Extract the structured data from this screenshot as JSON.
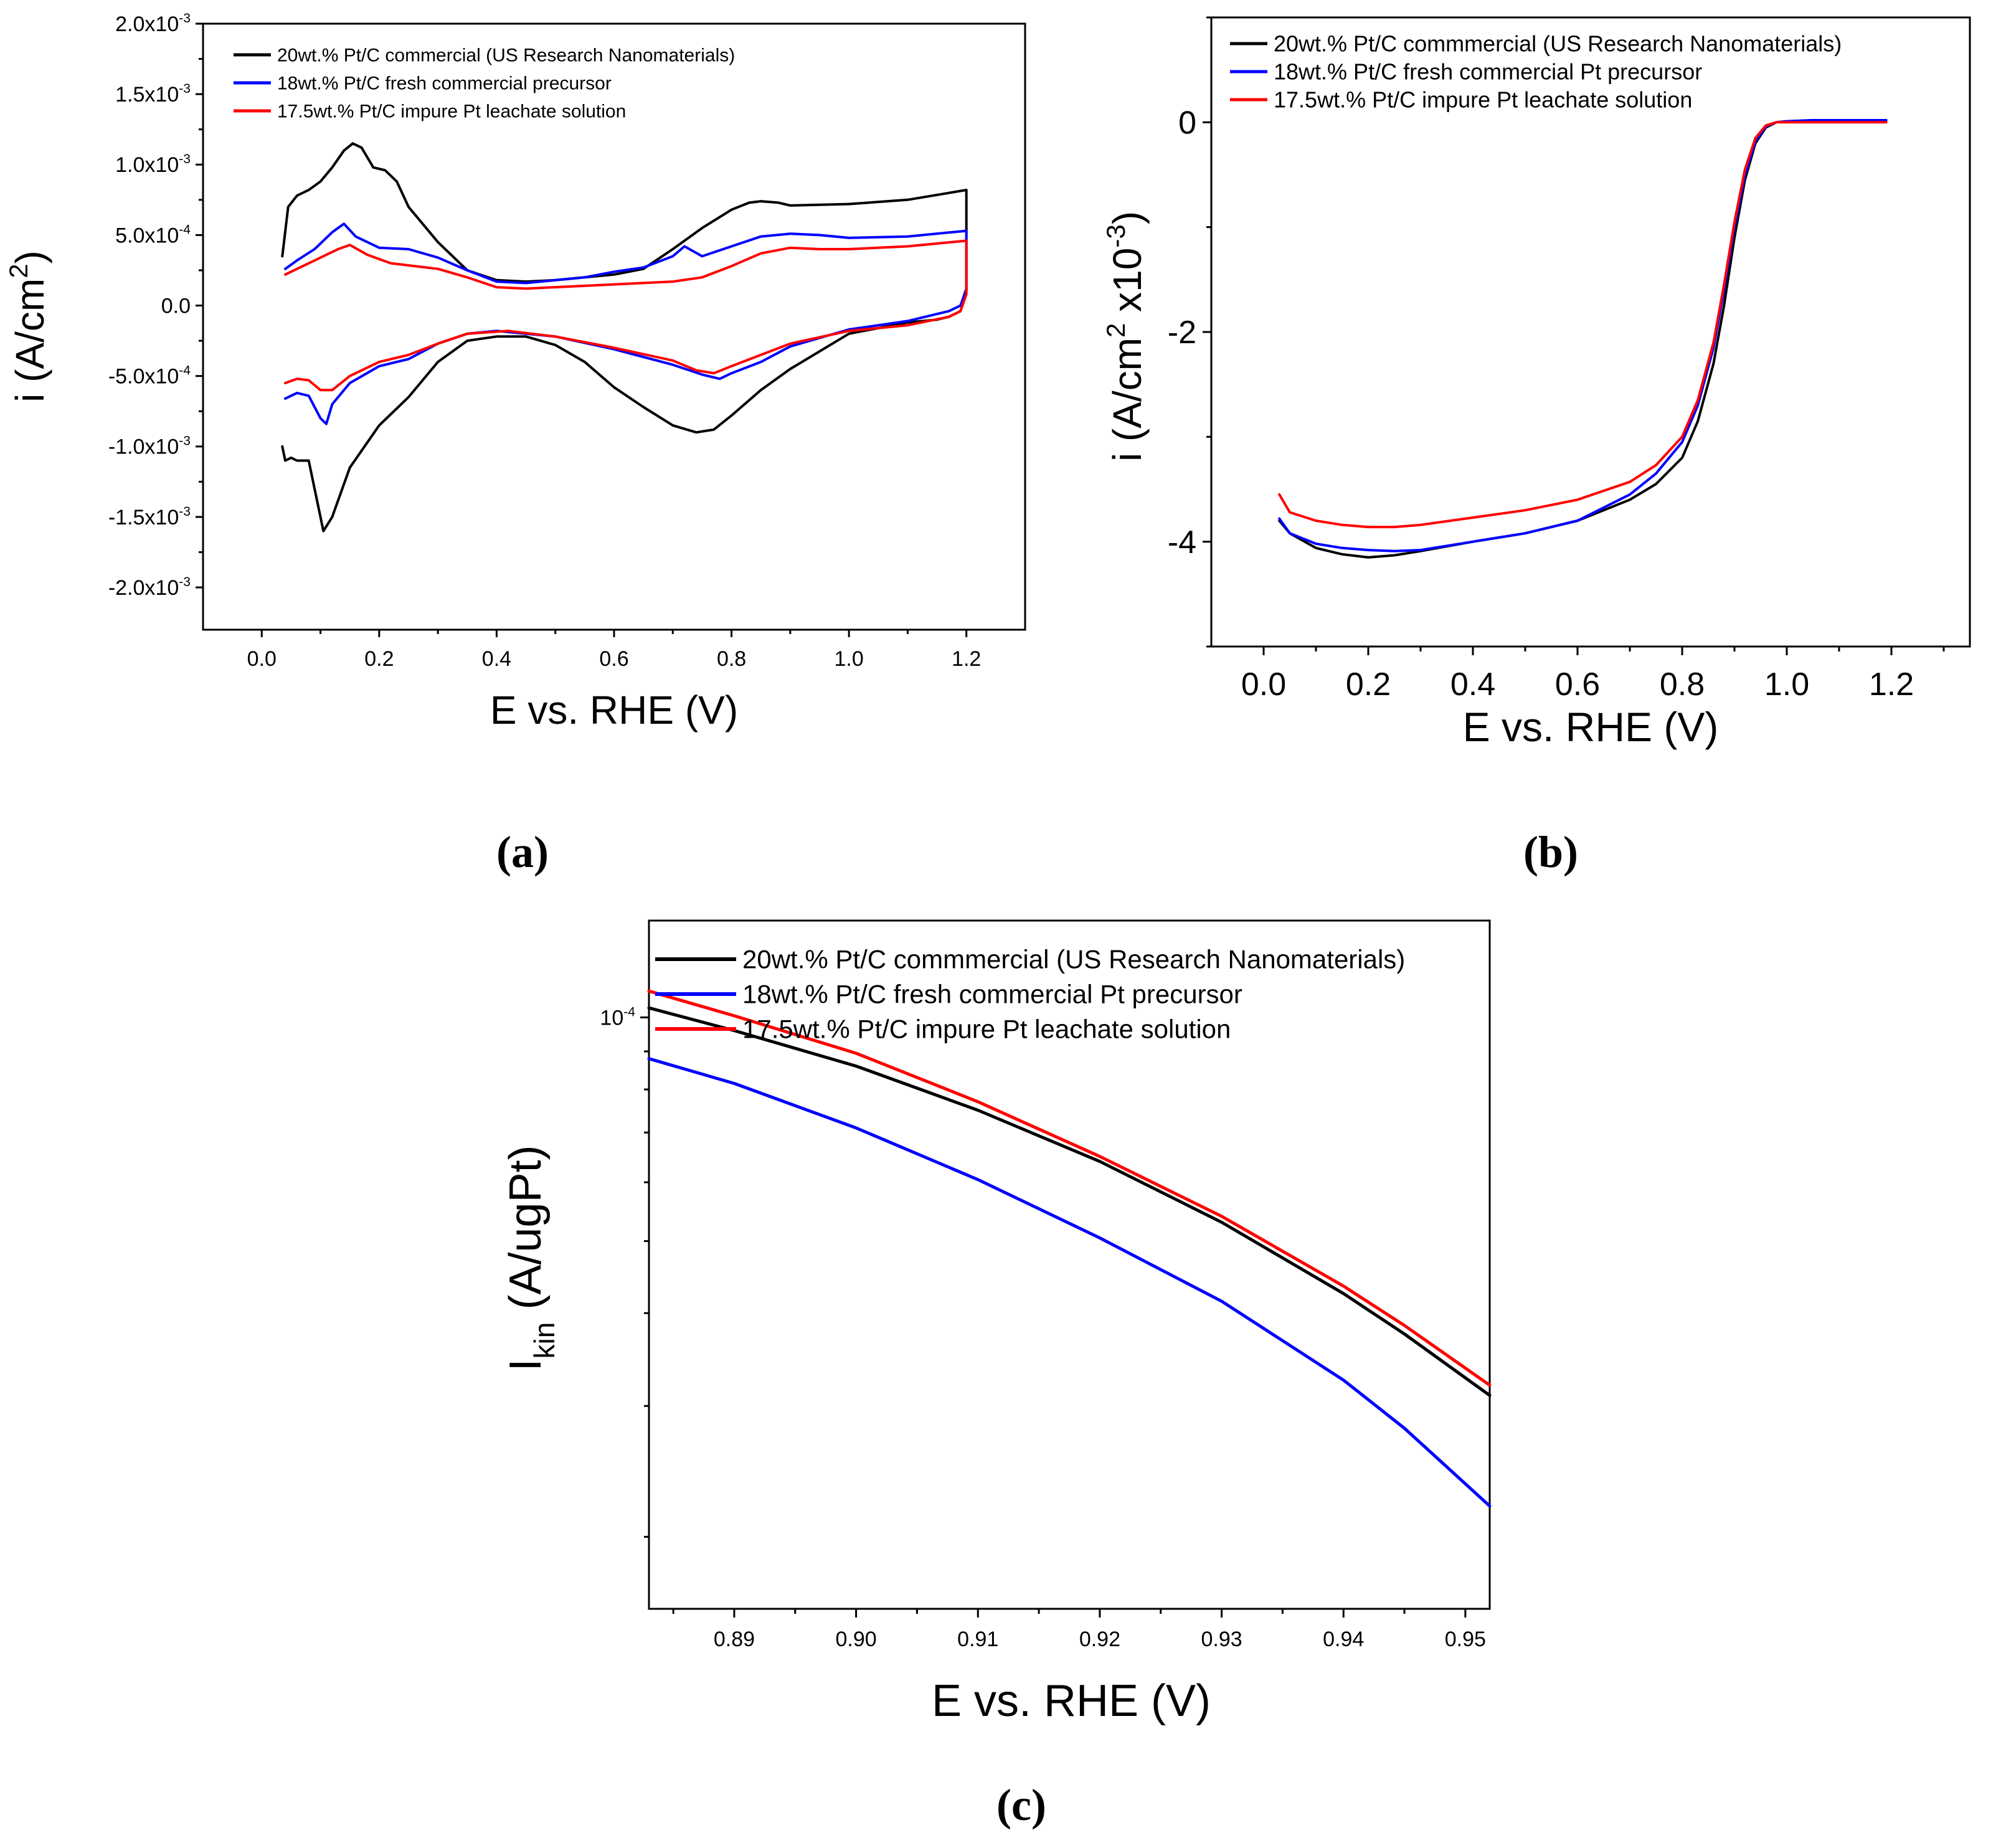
{
  "chart_data": [
    {
      "panel": "(a)",
      "type": "line",
      "title": "",
      "xlabel": "E vs. RHE (V)",
      "ylabel": "i (A/cm",
      "ylabel_sup": "2",
      "ylabel_close": ")",
      "xlim": [
        -0.1,
        1.3
      ],
      "ylim": [
        -0.0023,
        0.002
      ],
      "x_ticks": [
        0.0,
        0.2,
        0.4,
        0.6,
        0.8,
        1.0,
        1.2
      ],
      "x_tick_labels": [
        "0.0",
        "0.2",
        "0.4",
        "0.6",
        "0.8",
        "1.0",
        "1.2"
      ],
      "y_ticks": [
        {
          "value": 0.002,
          "mant": "2.0x10",
          "exp": "-3"
        },
        {
          "value": 0.0015,
          "mant": "1.5x10",
          "exp": "-3"
        },
        {
          "value": 0.001,
          "mant": "1.0x10",
          "exp": "-3"
        },
        {
          "value": 0.0005,
          "mant": "5.0x10",
          "exp": "-4"
        },
        {
          "value": 0.0,
          "mant": "0.0",
          "exp": ""
        },
        {
          "value": -0.0005,
          "mant": "-5.0x10",
          "exp": "-4"
        },
        {
          "value": -0.001,
          "mant": "-1.0x10",
          "exp": "-3"
        },
        {
          "value": -0.0015,
          "mant": "-1.5x10",
          "exp": "-3"
        },
        {
          "value": -0.002,
          "mant": "-2.0x10",
          "exp": "-3"
        }
      ],
      "legend_position": "top-left",
      "series": [
        {
          "name": "20wt.% Pt/C commercial (US Research Nanomaterials)",
          "color": "#000000",
          "x": [
            0.035,
            0.045,
            0.06,
            0.08,
            0.1,
            0.12,
            0.14,
            0.155,
            0.17,
            0.19,
            0.21,
            0.23,
            0.25,
            0.3,
            0.35,
            0.4,
            0.45,
            0.5,
            0.55,
            0.6,
            0.65,
            0.7,
            0.75,
            0.8,
            0.83,
            0.85,
            0.88,
            0.9,
            1.0,
            1.1,
            1.2,
            1.2,
            1.19,
            1.17,
            1.15,
            1.1,
            1.0,
            0.9,
            0.85,
            0.8,
            0.77,
            0.74,
            0.7,
            0.65,
            0.6,
            0.55,
            0.5,
            0.45,
            0.4,
            0.35,
            0.3,
            0.25,
            0.2,
            0.15,
            0.12,
            0.105,
            0.09,
            0.08,
            0.06,
            0.05,
            0.04,
            0.035
          ],
          "y": [
            0.00035,
            0.0007,
            0.00078,
            0.00082,
            0.00088,
            0.00098,
            0.0011,
            0.00115,
            0.00112,
            0.00098,
            0.00096,
            0.00088,
            0.0007,
            0.00045,
            0.00025,
            0.00018,
            0.00017,
            0.00018,
            0.0002,
            0.00022,
            0.00026,
            0.0004,
            0.00055,
            0.00068,
            0.00073,
            0.00074,
            0.00073,
            0.00071,
            0.00072,
            0.00075,
            0.00082,
            0.0001,
            -4e-05,
            -8e-05,
            -0.0001,
            -0.00012,
            -0.0002,
            -0.00045,
            -0.0006,
            -0.00078,
            -0.00088,
            -0.0009,
            -0.00085,
            -0.00072,
            -0.00058,
            -0.0004,
            -0.00028,
            -0.00022,
            -0.00022,
            -0.00025,
            -0.0004,
            -0.00065,
            -0.00085,
            -0.00115,
            -0.0015,
            -0.0016,
            -0.0013,
            -0.0011,
            -0.0011,
            -0.00108,
            -0.0011,
            -0.001
          ]
        },
        {
          "name": "18wt.% Pt/C fresh commercial precursor",
          "color": "#0000ff",
          "x": [
            0.04,
            0.06,
            0.09,
            0.12,
            0.14,
            0.16,
            0.2,
            0.25,
            0.3,
            0.35,
            0.4,
            0.45,
            0.5,
            0.55,
            0.6,
            0.65,
            0.7,
            0.72,
            0.75,
            0.8,
            0.85,
            0.9,
            0.95,
            1.0,
            1.1,
            1.2,
            1.2,
            1.19,
            1.17,
            1.1,
            1.0,
            0.9,
            0.85,
            0.8,
            0.78,
            0.75,
            0.7,
            0.6,
            0.5,
            0.4,
            0.35,
            0.3,
            0.25,
            0.2,
            0.15,
            0.12,
            0.11,
            0.1,
            0.08,
            0.06,
            0.04
          ],
          "y": [
            0.00026,
            0.00032,
            0.0004,
            0.00052,
            0.00058,
            0.00049,
            0.00041,
            0.0004,
            0.00034,
            0.00025,
            0.00017,
            0.00016,
            0.00018,
            0.0002,
            0.00024,
            0.00027,
            0.00035,
            0.00042,
            0.00035,
            0.00042,
            0.00049,
            0.00051,
            0.0005,
            0.00048,
            0.00049,
            0.00053,
            0.00012,
            0.0,
            -4e-05,
            -0.00011,
            -0.00017,
            -0.00029,
            -0.0004,
            -0.00048,
            -0.00052,
            -0.00049,
            -0.00042,
            -0.00031,
            -0.00022,
            -0.00018,
            -0.0002,
            -0.00027,
            -0.00038,
            -0.00043,
            -0.00055,
            -0.0007,
            -0.00084,
            -0.0008,
            -0.00064,
            -0.00062,
            -0.00066
          ]
        },
        {
          "name": "17.5wt.% Pt/C impure Pt leachate solution",
          "color": "#ff0000",
          "x": [
            0.04,
            0.07,
            0.1,
            0.13,
            0.15,
            0.18,
            0.22,
            0.3,
            0.35,
            0.4,
            0.45,
            0.5,
            0.6,
            0.7,
            0.75,
            0.8,
            0.85,
            0.9,
            0.95,
            1.0,
            1.1,
            1.2,
            1.2,
            1.19,
            1.17,
            1.1,
            1.0,
            0.9,
            0.85,
            0.8,
            0.77,
            0.74,
            0.7,
            0.6,
            0.5,
            0.42,
            0.35,
            0.3,
            0.25,
            0.2,
            0.15,
            0.12,
            0.1,
            0.08,
            0.06,
            0.04
          ],
          "y": [
            0.00022,
            0.00028,
            0.00034,
            0.0004,
            0.00043,
            0.00036,
            0.0003,
            0.00026,
            0.0002,
            0.00013,
            0.00012,
            0.00013,
            0.00015,
            0.00017,
            0.0002,
            0.00028,
            0.00037,
            0.00041,
            0.0004,
            0.0004,
            0.00042,
            0.00046,
            8e-05,
            -4e-05,
            -8e-05,
            -0.00014,
            -0.00018,
            -0.00027,
            -0.00035,
            -0.00043,
            -0.00048,
            -0.00046,
            -0.00039,
            -0.0003,
            -0.00022,
            -0.00018,
            -0.0002,
            -0.00027,
            -0.00035,
            -0.0004,
            -0.0005,
            -0.0006,
            -0.0006,
            -0.00053,
            -0.00052,
            -0.00055
          ]
        }
      ]
    },
    {
      "panel": "(b)",
      "type": "line",
      "title": "",
      "xlabel": "E vs. RHE (V)",
      "ylabel": "i (A/cm",
      "ylabel_sup": "2",
      "ylabel_mid": " x10",
      "ylabel_sup2": "-3",
      "ylabel_close": ")",
      "xlim": [
        -0.1,
        1.35
      ],
      "ylim": [
        -5,
        1.0
      ],
      "x_ticks": [
        0.0,
        0.2,
        0.4,
        0.6,
        0.8,
        1.0,
        1.2
      ],
      "x_tick_labels": [
        "0.0",
        "0.2",
        "0.4",
        "0.6",
        "0.8",
        "1.0",
        "1.2"
      ],
      "y_ticks": [
        0,
        -2,
        -4
      ],
      "y_tick_labels": [
        "0",
        "-2",
        "-4"
      ],
      "legend_position": "top-left",
      "series": [
        {
          "name": "20wt.% Pt/C commmercial (US Research Nanomaterials)",
          "color": "#000000",
          "x": [
            0.03,
            0.05,
            0.1,
            0.15,
            0.2,
            0.25,
            0.3,
            0.4,
            0.5,
            0.6,
            0.7,
            0.75,
            0.8,
            0.83,
            0.86,
            0.88,
            0.9,
            0.92,
            0.94,
            0.96,
            0.98,
            1.0,
            1.05,
            1.1,
            1.19
          ],
          "y": [
            -3.8,
            -3.92,
            -4.06,
            -4.12,
            -4.15,
            -4.13,
            -4.09,
            -4.0,
            -3.92,
            -3.8,
            -3.6,
            -3.45,
            -3.2,
            -2.85,
            -2.3,
            -1.75,
            -1.1,
            -0.55,
            -0.2,
            -0.05,
            0.0,
            0.01,
            0.02,
            0.02,
            0.02
          ]
        },
        {
          "name": "18wt.% Pt/C fresh commercial Pt precursor",
          "color": "#0000ff",
          "x": [
            0.03,
            0.05,
            0.1,
            0.15,
            0.2,
            0.25,
            0.3,
            0.4,
            0.5,
            0.6,
            0.7,
            0.75,
            0.8,
            0.83,
            0.86,
            0.88,
            0.9,
            0.92,
            0.94,
            0.96,
            0.98,
            1.0,
            1.05,
            1.1,
            1.19
          ],
          "y": [
            -3.78,
            -3.92,
            -4.02,
            -4.06,
            -4.08,
            -4.09,
            -4.08,
            -4.0,
            -3.92,
            -3.8,
            -3.55,
            -3.35,
            -3.05,
            -2.7,
            -2.15,
            -1.6,
            -1.0,
            -0.5,
            -0.18,
            -0.04,
            0.0,
            0.01,
            0.02,
            0.02,
            0.02
          ]
        },
        {
          "name": "17.5wt.% Pt/C impure Pt leachate solution",
          "color": "#ff0000",
          "x": [
            0.03,
            0.05,
            0.1,
            0.15,
            0.2,
            0.25,
            0.3,
            0.4,
            0.5,
            0.6,
            0.7,
            0.75,
            0.8,
            0.83,
            0.86,
            0.88,
            0.9,
            0.92,
            0.94,
            0.96,
            0.98,
            1.0,
            1.05,
            1.1,
            1.19
          ],
          "y": [
            -3.55,
            -3.72,
            -3.8,
            -3.84,
            -3.86,
            -3.86,
            -3.84,
            -3.77,
            -3.7,
            -3.6,
            -3.43,
            -3.27,
            -3.0,
            -2.65,
            -2.1,
            -1.55,
            -0.95,
            -0.45,
            -0.15,
            -0.03,
            0.0,
            0.0,
            0.0,
            0.0,
            0.0
          ]
        }
      ]
    },
    {
      "panel": "(c)",
      "type": "line",
      "scale_y": "log",
      "title": "",
      "xlabel": "E vs. RHE (V)",
      "ylabel": "I",
      "ylabel_sub": "kin",
      "ylabel_rest": " (A/ugPt)",
      "xlim": [
        0.883,
        0.952
      ],
      "ylim": [
        1.6e-05,
        0.000135
      ],
      "x_ticks": [
        0.89,
        0.9,
        0.91,
        0.92,
        0.93,
        0.94,
        0.95
      ],
      "x_tick_labels": [
        "0.89",
        "0.90",
        "0.91",
        "0.92",
        "0.93",
        "0.94",
        "0.95"
      ],
      "y_major_ticks": [
        {
          "value": 0.0001,
          "mant": "10",
          "exp": "-4"
        }
      ],
      "y_minor_ticks": [
        2e-05,
        3e-05,
        4e-05,
        5e-05,
        6e-05,
        7e-05,
        8e-05,
        9e-05
      ],
      "legend_position": "top-left",
      "series": [
        {
          "name": " 20wt.% Pt/C commmercial (US Research Nanomaterials)",
          "color": "#000000",
          "x": [
            0.883,
            0.89,
            0.9,
            0.91,
            0.92,
            0.93,
            0.94,
            0.945,
            0.952
          ],
          "y": [
            0.000103,
            9.6e-05,
            8.6e-05,
            7.5e-05,
            6.4e-05,
            5.3e-05,
            4.25e-05,
            3.75e-05,
            3.1e-05
          ]
        },
        {
          "name": "18wt.% Pt/C fresh commercial Pt precursor",
          "color": "#0000ff",
          "x": [
            0.883,
            0.89,
            0.9,
            0.91,
            0.92,
            0.93,
            0.94,
            0.945,
            0.952
          ],
          "y": [
            8.8e-05,
            8.15e-05,
            7.1e-05,
            6.05e-05,
            5.05e-05,
            4.15e-05,
            3.25e-05,
            2.8e-05,
            2.2e-05
          ]
        },
        {
          "name": "17.5wt.% Pt/C impure Pt leachate solution",
          "color": "#ff0000",
          "x": [
            0.883,
            0.89,
            0.9,
            0.91,
            0.92,
            0.93,
            0.94,
            0.945,
            0.952
          ],
          "y": [
            0.0001085,
            0.0001005,
            8.95e-05,
            7.7e-05,
            6.5e-05,
            5.4e-05,
            4.35e-05,
            3.85e-05,
            3.2e-05
          ]
        }
      ]
    }
  ]
}
